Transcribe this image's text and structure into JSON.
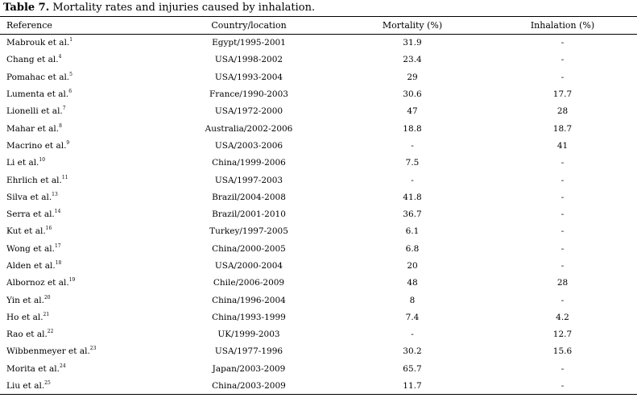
{
  "caption": {
    "label": "Table 7.",
    "text": " Mortality rates and injuries caused by inhalation."
  },
  "headers": [
    "Reference",
    "Country/location",
    "Mortality (%)",
    "Inhalation (%)"
  ],
  "rows": [
    {
      "ref": "Mabrouk et al.",
      "sup": "1",
      "loc": "Egypt/1995-2001",
      "mort": "31.9",
      "inh": "-"
    },
    {
      "ref": "Chang et al.",
      "sup": "4",
      "loc": "USA/1998-2002",
      "mort": "23.4",
      "inh": "-"
    },
    {
      "ref": "Pomahac et al.",
      "sup": "5",
      "loc": "USA/1993-2004",
      "mort": "29",
      "inh": "-"
    },
    {
      "ref": "Lumenta et al.",
      "sup": "6",
      "loc": "France/1990-2003",
      "mort": "30.6",
      "inh": "17.7"
    },
    {
      "ref": "Lionelli et al.",
      "sup": "7",
      "loc": "USA/1972-2000",
      "mort": "47",
      "inh": "28"
    },
    {
      "ref": "Mahar et al.",
      "sup": "8",
      "loc": "Australia/2002-2006",
      "mort": "18.8",
      "inh": "18.7"
    },
    {
      "ref": "Macrino et al.",
      "sup": "9",
      "loc": "USA/2003-2006",
      "mort": "-",
      "inh": "41"
    },
    {
      "ref": "Li et al.",
      "sup": "10",
      "loc": "China/1999-2006",
      "mort": "7.5",
      "inh": "-"
    },
    {
      "ref": "Ehrlich et al.",
      "sup": "11",
      "loc": "USA/1997-2003",
      "mort": "-",
      "inh": "-"
    },
    {
      "ref": "Silva et al.",
      "sup": "13",
      "loc": "Brazil/2004-2008",
      "mort": "41.8",
      "inh": "-"
    },
    {
      "ref": "Serra et al.",
      "sup": "14",
      "loc": "Brazil/2001-2010",
      "mort": "36.7",
      "inh": "-"
    },
    {
      "ref": "Kut et al.",
      "sup": "16",
      "loc": "Turkey/1997-2005",
      "mort": "6.1",
      "inh": "-"
    },
    {
      "ref": "Wong et al.",
      "sup": "17",
      "loc": "China/2000-2005",
      "mort": "6.8",
      "inh": "-"
    },
    {
      "ref": "Alden et al.",
      "sup": "18",
      "loc": "USA/2000-2004",
      "mort": "20",
      "inh": "-"
    },
    {
      "ref": "Albornoz et al.",
      "sup": "19",
      "loc": "Chile/2006-2009",
      "mort": "48",
      "inh": "28"
    },
    {
      "ref": "Yin et al.",
      "sup": "20",
      "loc": "China/1996-2004",
      "mort": "8",
      "inh": "-"
    },
    {
      "ref": "Ho et al.",
      "sup": "21",
      "loc": "China/1993-1999",
      "mort": "7.4",
      "inh": "4.2"
    },
    {
      "ref": "Rao et al.",
      "sup": "22",
      "loc": "UK/1999-2003",
      "mort": "-",
      "inh": "12.7"
    },
    {
      "ref": "Wibbenmeyer et al.",
      "sup": "23",
      "loc": "USA/1977-1996",
      "mort": "30.2",
      "inh": "15.6"
    },
    {
      "ref": "Morita et al.",
      "sup": "24",
      "loc": "Japan/2003-2009",
      "mort": "65.7",
      "inh": "-"
    },
    {
      "ref": "Liu et al.",
      "sup": "25",
      "loc": "China/2003-2009",
      "mort": "11.7",
      "inh": "-"
    }
  ]
}
